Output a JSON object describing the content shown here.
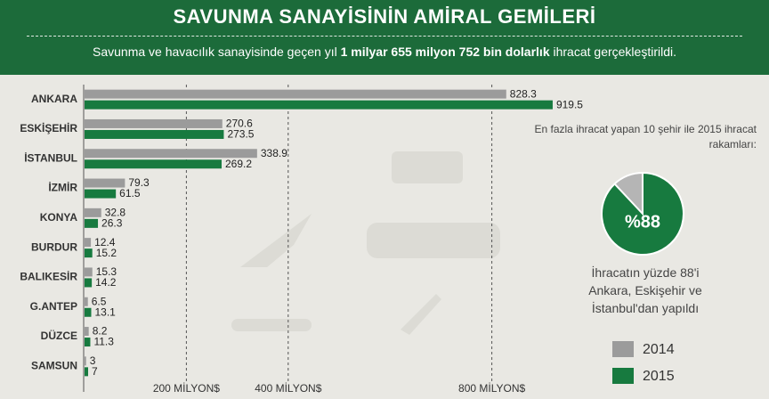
{
  "header": {
    "title": "SAVUNMA SANAYİSİNİN AMİRAL GEMİLERİ",
    "subtitle": [
      "Savunma ve havacılık sanayisinde geçen yıl",
      "1 milyar 655 milyon 752 bin dolarlık",
      "ihracat gerçekleştirildi."
    ]
  },
  "chart_data": [
    {
      "type": "bar",
      "orientation": "horizontal",
      "categories": [
        "ANKARA",
        "ESKİŞEHİR",
        "İSTANBUL",
        "İZMİR",
        "KONYA",
        "BURDUR",
        "BALIKESİR",
        "G.ANTEP",
        "DÜZCE",
        "SAMSUN"
      ],
      "series": [
        {
          "name": "2014",
          "color": "#9b9b9b",
          "values": [
            828.3,
            270.6,
            338.9,
            79.3,
            32.8,
            12.4,
            15.3,
            6.5,
            8.2,
            3
          ]
        },
        {
          "name": "2015",
          "color": "#177a3f",
          "values": [
            919.5,
            273.5,
            269.2,
            61.5,
            26.3,
            15.2,
            14.2,
            13.1,
            11.3,
            7
          ]
        }
      ],
      "xlim": [
        0,
        1000
      ],
      "xticks": [
        {
          "value": 200,
          "label": "200 MİLYON$"
        },
        {
          "value": 400,
          "label": "400 MİLYON$"
        },
        {
          "value": 800,
          "label": "800 MİLYON$"
        }
      ],
      "grid": true
    },
    {
      "type": "pie",
      "note": "En fazla ihracat yapan 10 şehir ile 2015 ihracat rakamları:",
      "values": [
        88
      ],
      "value_labels": [
        "%88"
      ],
      "color": "#177a3f",
      "rest_color": "#b5b5b5",
      "caption": "İhracatın yüzde 88'i Ankara, Eskişehir ve İstanbul'dan yapıldı"
    }
  ]
}
